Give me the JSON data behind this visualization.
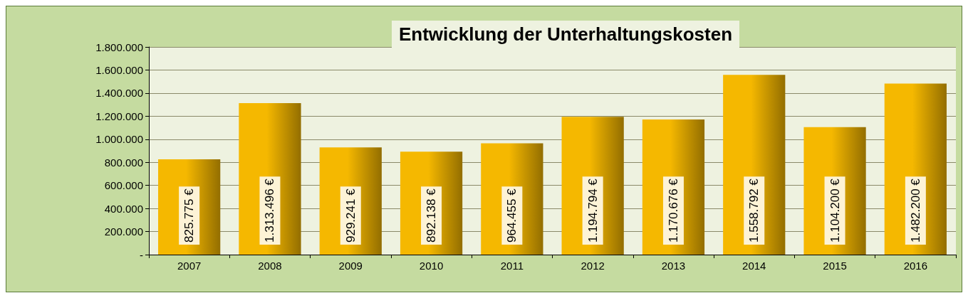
{
  "chart_data": {
    "type": "bar",
    "title": "Entwicklung der Unterhaltungskosten",
    "categories": [
      "2007",
      "2008",
      "2009",
      "2010",
      "2011",
      "2012",
      "2013",
      "2014",
      "2015",
      "2016"
    ],
    "values": [
      825775,
      1313496,
      929241,
      892138,
      964455,
      1194794,
      1170676,
      1558792,
      1104200,
      1482200
    ],
    "value_labels": [
      "825.775 €",
      "1.313.496 €",
      "929.241 €",
      "892.138 €",
      "964.455 €",
      "1.194.794 €",
      "1.170.676 €",
      "1.558.792 €",
      "1.104.200 €",
      "1.482.200 €"
    ],
    "color": "#f5b800",
    "ylim": [
      0,
      1800000
    ],
    "yticks": [
      {
        "value": 0,
        "label": "-"
      },
      {
        "value": 200000,
        "label": "200.000"
      },
      {
        "value": 400000,
        "label": "400.000"
      },
      {
        "value": 600000,
        "label": "600.000"
      },
      {
        "value": 800000,
        "label": "800.000"
      },
      {
        "value": 1000000,
        "label": "1.000.000"
      },
      {
        "value": 1200000,
        "label": "1.200.000"
      },
      {
        "value": 1400000,
        "label": "1.400.000"
      },
      {
        "value": 1600000,
        "label": "1.600.000"
      },
      {
        "value": 1800000,
        "label": "1.800.000"
      }
    ],
    "grid": "y"
  }
}
